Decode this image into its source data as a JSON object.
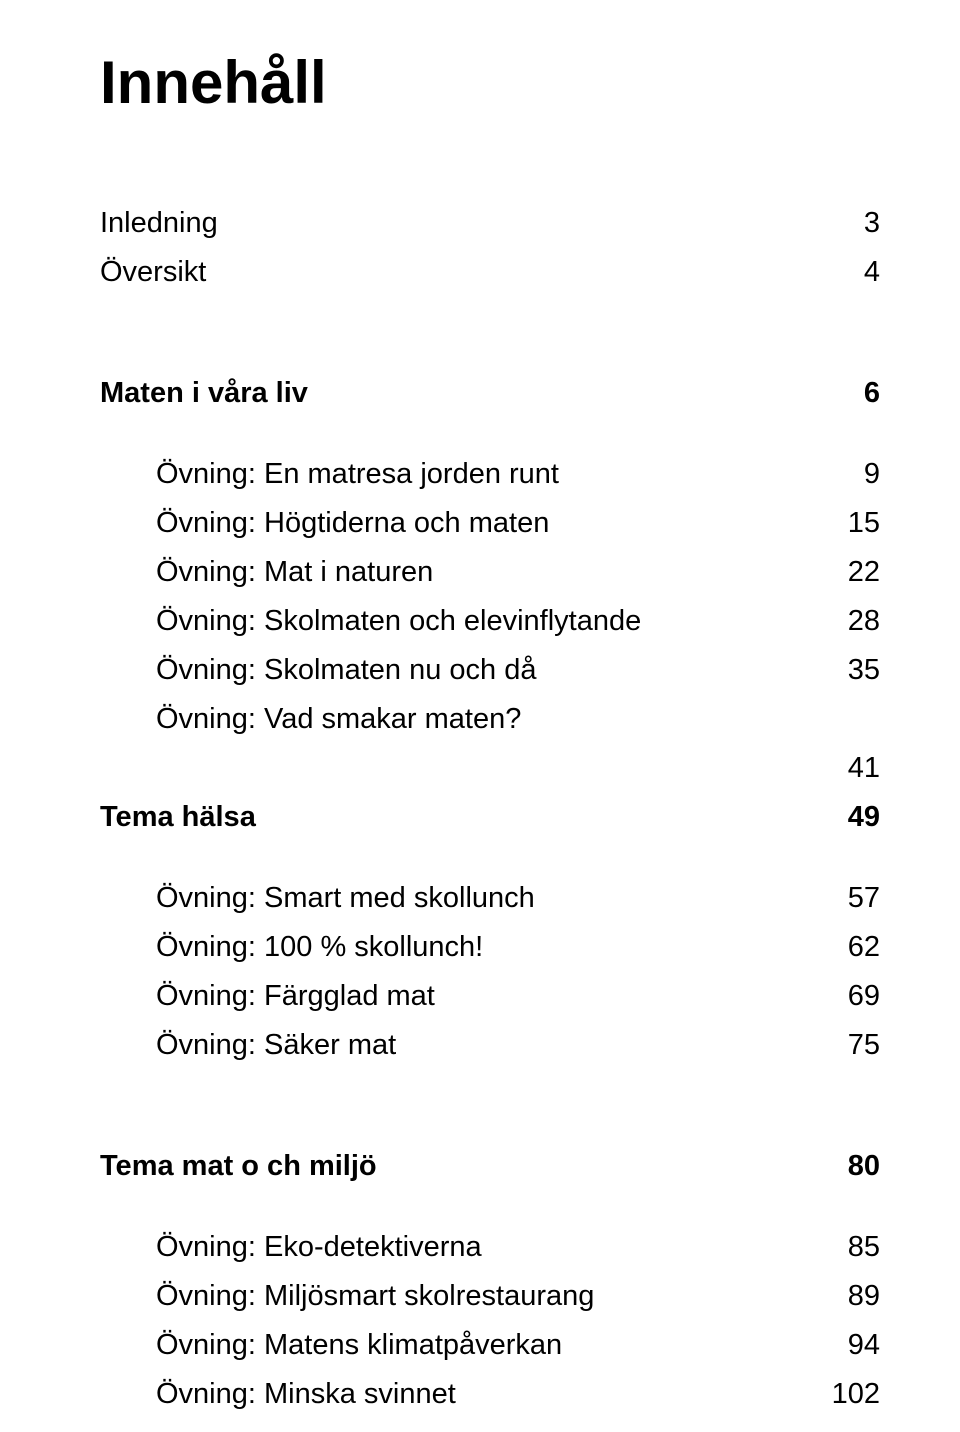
{
  "title": "Innehåll",
  "colors": {
    "text": "#000000",
    "background": "#ffffff"
  },
  "typography": {
    "title_fontsize": 60,
    "title_fontweight": 700,
    "row_fontsize": 29,
    "bold_weight": 700,
    "normal_weight": 400,
    "font_family": "Arial"
  },
  "rows": {
    "inledning": {
      "label": "Inledning",
      "page": "3"
    },
    "oversikt": {
      "label": "Översikt",
      "page": "4"
    },
    "maten": {
      "label": "Maten i våra liv",
      "page": "6"
    },
    "matresa": {
      "label": "Övning: En matresa jorden runt",
      "page": "9"
    },
    "hogtiderna": {
      "label": "Övning: Högtiderna och maten",
      "page": "15"
    },
    "natur": {
      "label": "Övning: Mat i naturen",
      "page": "22"
    },
    "elev": {
      "label": "Övning: Skolmaten och elevinflytande",
      "page": "28"
    },
    "nuda": {
      "label": "Övning: Skolmaten nu och då",
      "page": "35"
    },
    "smakar": {
      "label": "Övning: Vad smakar maten?",
      "page": ""
    },
    "p41": {
      "label": "",
      "page": "41"
    },
    "halsa": {
      "label": "Tema hälsa",
      "page": "49"
    },
    "smart": {
      "label": "Övning: Smart med skollunch",
      "page": "57"
    },
    "hundra": {
      "label": "Övning: 100 % skollunch!",
      "page": "62"
    },
    "fargglad": {
      "label": "Övning: Färgglad mat",
      "page": "69"
    },
    "saker": {
      "label": "Övning: Säker mat",
      "page": "75"
    },
    "miljo": {
      "label": "Tema mat o ch miljö",
      "page": "80"
    },
    "eko": {
      "label": "Övning: Eko-detektiverna",
      "page": "85"
    },
    "miljosmart": {
      "label": "Övning: Miljösmart skolrestaurang",
      "page": "89"
    },
    "klimat": {
      "label": "Övning: Matens klimatpåverkan",
      "page": "94"
    },
    "svinnet": {
      "label": "Övning: Minska svinnet",
      "page": "102"
    }
  }
}
